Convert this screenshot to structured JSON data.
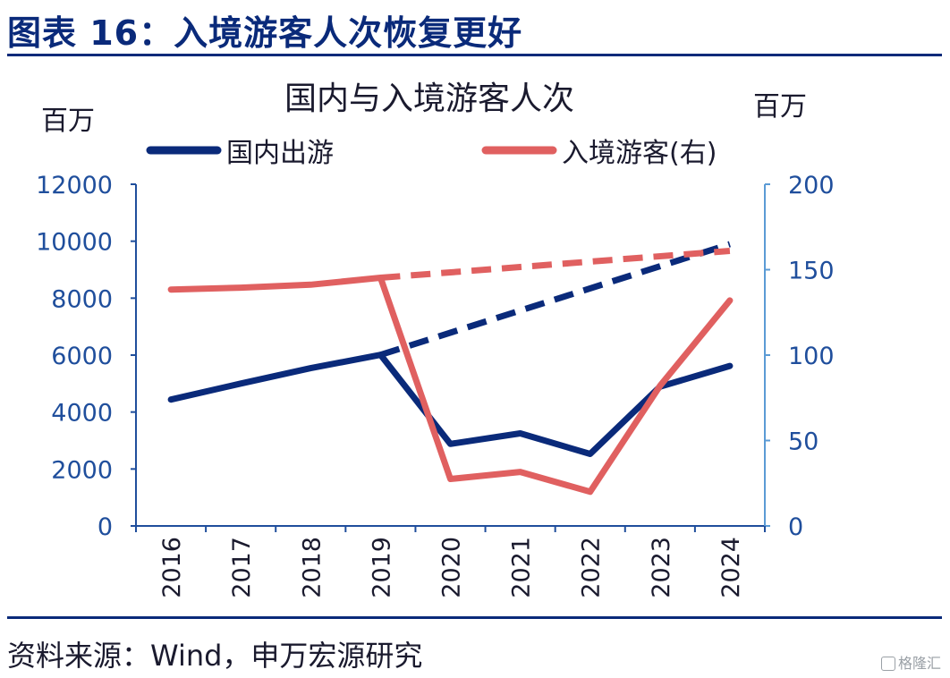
{
  "header": {
    "title": "图表 16：入境游客人次恢复更好"
  },
  "footer": {
    "source": "资料来源：Wind，申万宏源研究",
    "watermark": "格隆汇"
  },
  "colors": {
    "navy": "#0a2a7a",
    "red": "#e06060",
    "right_axis": "#5b9bd5",
    "left_axis": "#1f4e9c"
  },
  "chart_data": {
    "type": "line",
    "title": "国内与入境游客人次",
    "left_unit": "百万",
    "right_unit": "百万",
    "categories": [
      "2016",
      "2017",
      "2018",
      "2019",
      "2020",
      "2021",
      "2022",
      "2023",
      "2024"
    ],
    "y_left": {
      "min": 0,
      "max": 12000,
      "ticks": [
        0,
        2000,
        4000,
        6000,
        8000,
        10000,
        12000
      ]
    },
    "y_right": {
      "min": 0,
      "max": 200,
      "ticks": [
        0,
        50,
        100,
        150,
        200
      ]
    },
    "legend_position": "top",
    "grid": false,
    "series": [
      {
        "name": "国内出游",
        "axis": "left",
        "style": "solid",
        "color": "#0a2a7a",
        "values": [
          4440,
          5000,
          5540,
          6010,
          2880,
          3250,
          2530,
          4890,
          5620
        ]
      },
      {
        "name": "入境游客(右)",
        "axis": "right",
        "style": "solid",
        "color": "#e06060",
        "values": [
          138.4,
          139.5,
          141.2,
          145.3,
          27.5,
          31.6,
          20.0,
          82.0,
          132.0
        ]
      },
      {
        "axis": "left",
        "style": "dashed",
        "color": "#0a2a7a",
        "x": [
          "2019",
          "2024"
        ],
        "values": [
          6010,
          9900
        ]
      },
      {
        "axis": "right",
        "style": "dashed",
        "color": "#e06060",
        "x": [
          "2019",
          "2024"
        ],
        "values": [
          145.3,
          161.0
        ]
      }
    ]
  }
}
